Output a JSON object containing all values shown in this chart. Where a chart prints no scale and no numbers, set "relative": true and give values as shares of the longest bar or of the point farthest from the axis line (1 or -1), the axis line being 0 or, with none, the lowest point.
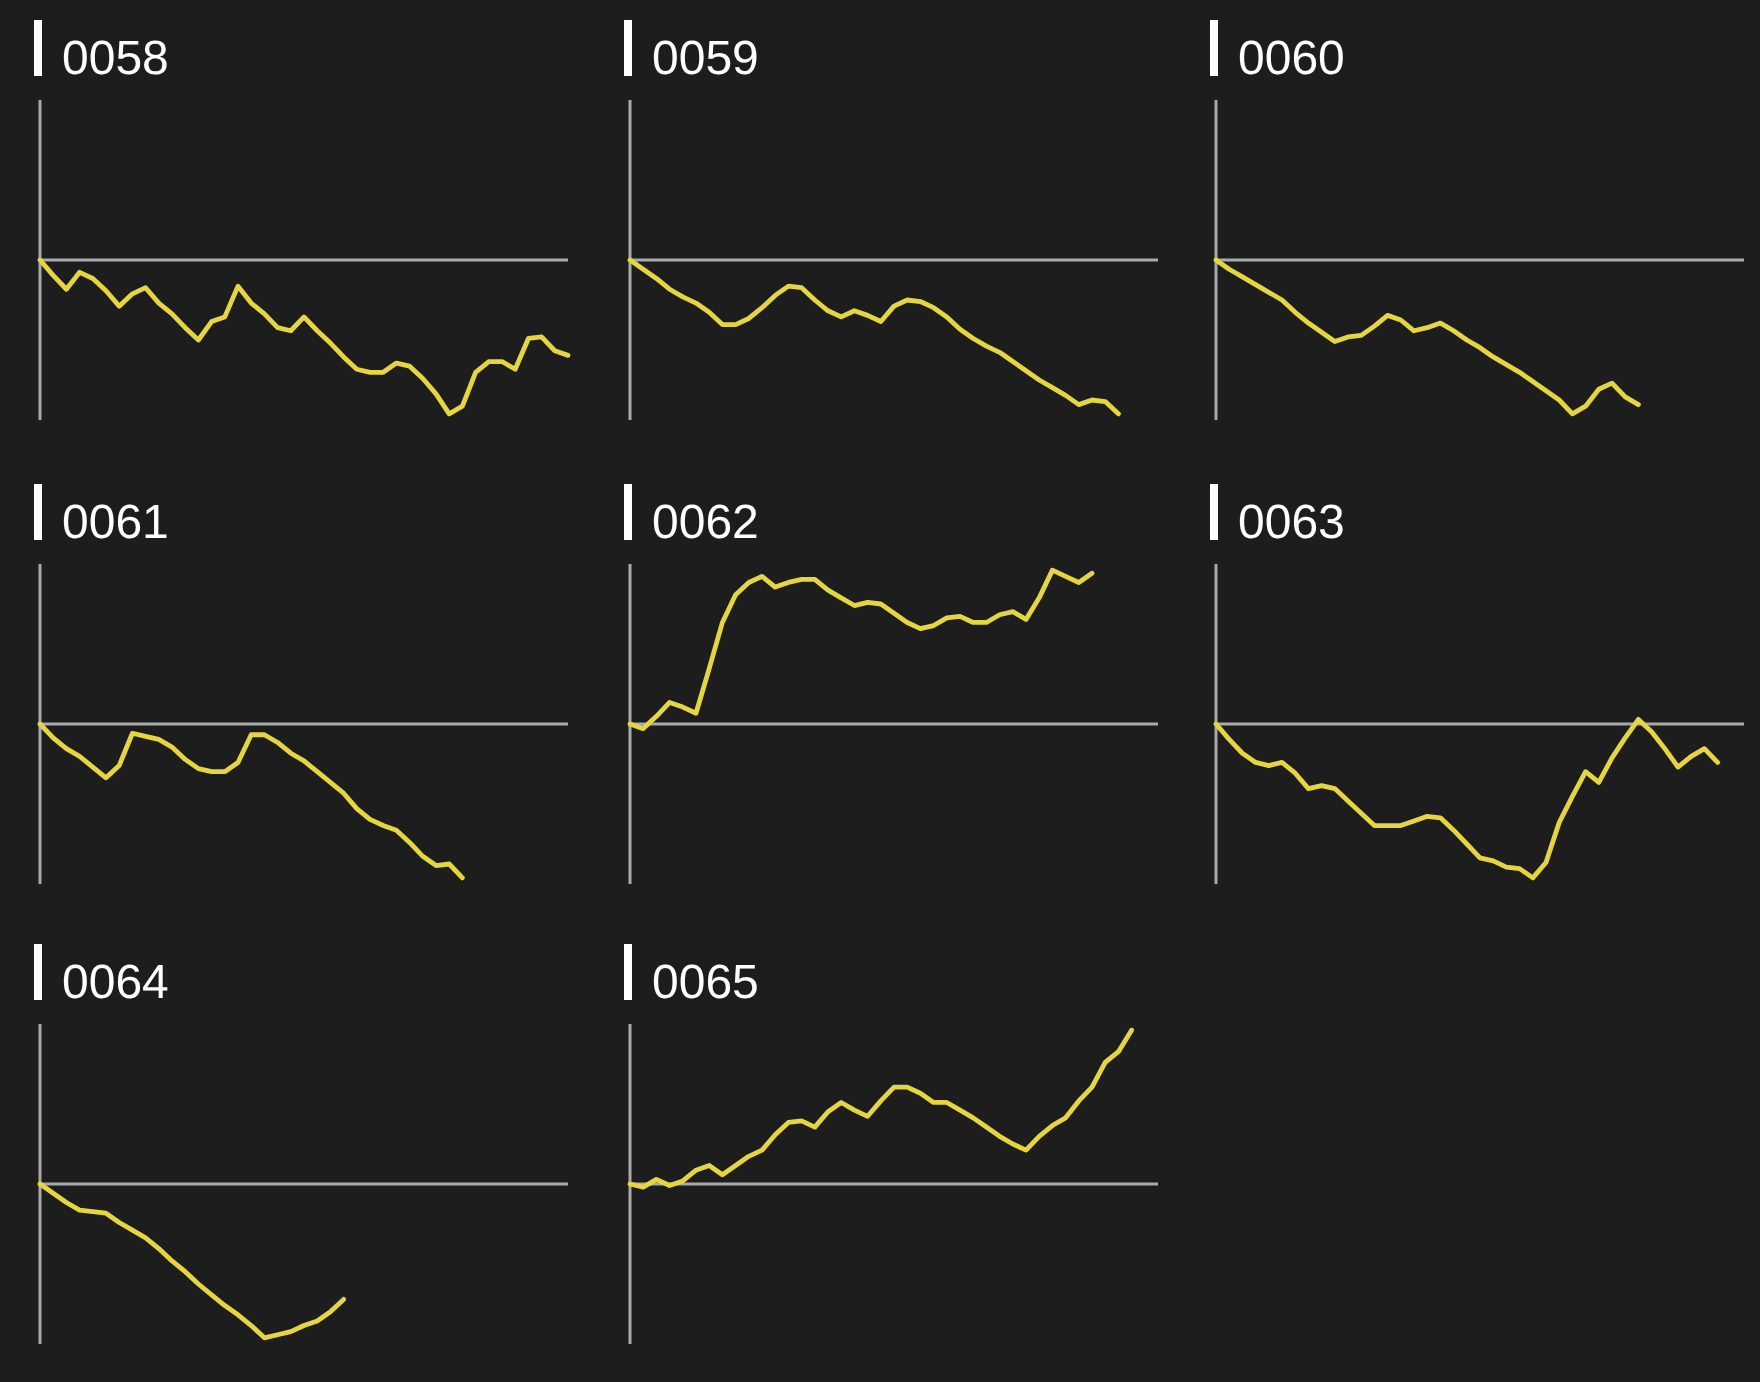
{
  "chart_data": [
    {
      "type": "line",
      "title": "0058",
      "relative": true,
      "color": "#e5d540",
      "categories": [
        null,
        null,
        null,
        null,
        null,
        null,
        null,
        null,
        null,
        null,
        null,
        null,
        null,
        null,
        null,
        null,
        null,
        null,
        null,
        null,
        null,
        null,
        null,
        null,
        null,
        null,
        null,
        null,
        null,
        null,
        null,
        null,
        null,
        null,
        null,
        null,
        null,
        null,
        null,
        null,
        null
      ],
      "values": [
        0,
        -0.1,
        -0.19,
        -0.08,
        -0.12,
        -0.2,
        -0.3,
        -0.22,
        -0.18,
        -0.28,
        -0.35,
        -0.44,
        -0.52,
        -0.4,
        -0.37,
        -0.17,
        -0.28,
        -0.35,
        -0.44,
        -0.46,
        -0.37,
        -0.46,
        -0.54,
        -0.63,
        -0.71,
        -0.73,
        -0.73,
        -0.67,
        -0.69,
        -0.77,
        -0.87,
        -1,
        -0.95,
        -0.73,
        -0.66,
        -0.66,
        -0.71,
        -0.51,
        -0.5,
        -0.59,
        -0.62
      ]
    },
    {
      "type": "line",
      "title": "0059",
      "relative": true,
      "color": "#e5d540",
      "categories": [
        null,
        null,
        null,
        null,
        null,
        null,
        null,
        null,
        null,
        null,
        null,
        null,
        null,
        null,
        null,
        null,
        null,
        null,
        null,
        null,
        null,
        null,
        null,
        null,
        null,
        null,
        null,
        null,
        null,
        null,
        null,
        null,
        null,
        null,
        null,
        null,
        null,
        null,
        null,
        null,
        null
      ],
      "values": [
        0,
        -0.06,
        -0.12,
        -0.19,
        -0.24,
        -0.28,
        -0.34,
        -0.42,
        -0.42,
        -0.38,
        -0.31,
        -0.23,
        -0.17,
        -0.18,
        -0.26,
        -0.33,
        -0.37,
        -0.33,
        -0.36,
        -0.4,
        -0.3,
        -0.26,
        -0.27,
        -0.31,
        -0.37,
        -0.45,
        -0.51,
        -0.56,
        -0.6,
        -0.66,
        -0.72,
        -0.78,
        -0.83,
        -0.88,
        -0.94,
        -0.91,
        -0.92,
        -1,
        null,
        null,
        null
      ]
    },
    {
      "type": "line",
      "title": "0060",
      "relative": true,
      "color": "#e5d540",
      "categories": [
        null,
        null,
        null,
        null,
        null,
        null,
        null,
        null,
        null,
        null,
        null,
        null,
        null,
        null,
        null,
        null,
        null,
        null,
        null,
        null,
        null,
        null,
        null,
        null,
        null,
        null,
        null,
        null,
        null,
        null,
        null,
        null,
        null,
        null,
        null,
        null,
        null,
        null,
        null,
        null,
        null
      ],
      "values": [
        0,
        -0.06,
        -0.11,
        -0.16,
        -0.21,
        -0.26,
        -0.34,
        -0.41,
        -0.47,
        -0.53,
        -0.5,
        -0.49,
        -0.43,
        -0.36,
        -0.39,
        -0.46,
        -0.44,
        -0.41,
        -0.46,
        -0.52,
        -0.57,
        -0.63,
        -0.68,
        -0.73,
        -0.79,
        -0.85,
        -0.91,
        -1,
        -0.95,
        -0.84,
        -0.8,
        -0.89,
        -0.94,
        null,
        null,
        null,
        null,
        null,
        null,
        null,
        null
      ]
    },
    {
      "type": "line",
      "title": "0061",
      "relative": true,
      "color": "#e5d540",
      "categories": [
        null,
        null,
        null,
        null,
        null,
        null,
        null,
        null,
        null,
        null,
        null,
        null,
        null,
        null,
        null,
        null,
        null,
        null,
        null,
        null,
        null,
        null,
        null,
        null,
        null,
        null,
        null,
        null,
        null,
        null,
        null,
        null,
        null,
        null,
        null,
        null,
        null,
        null,
        null,
        null,
        null
      ],
      "values": [
        0,
        -0.09,
        -0.16,
        -0.21,
        -0.28,
        -0.35,
        -0.27,
        -0.06,
        -0.08,
        -0.1,
        -0.15,
        -0.23,
        -0.29,
        -0.31,
        -0.31,
        -0.25,
        -0.07,
        -0.07,
        -0.12,
        -0.19,
        -0.24,
        -0.31,
        -0.38,
        -0.45,
        -0.55,
        -0.62,
        -0.66,
        -0.69,
        -0.77,
        -0.86,
        -0.92,
        -0.91,
        -1,
        null,
        null,
        null,
        null,
        null,
        null,
        null,
        null
      ]
    },
    {
      "type": "line",
      "title": "0062",
      "relative": true,
      "color": "#e5d540",
      "categories": [
        null,
        null,
        null,
        null,
        null,
        null,
        null,
        null,
        null,
        null,
        null,
        null,
        null,
        null,
        null,
        null,
        null,
        null,
        null,
        null,
        null,
        null,
        null,
        null,
        null,
        null,
        null,
        null,
        null,
        null,
        null,
        null,
        null,
        null,
        null,
        null,
        null,
        null,
        null,
        null,
        null
      ],
      "values": [
        0,
        -0.03,
        0.05,
        0.14,
        0.11,
        0.07,
        0.36,
        0.66,
        0.84,
        0.92,
        0.96,
        0.89,
        0.92,
        0.94,
        0.94,
        0.87,
        0.82,
        0.77,
        0.79,
        0.78,
        0.72,
        0.66,
        0.62,
        0.64,
        0.69,
        0.7,
        0.66,
        0.66,
        0.71,
        0.73,
        0.68,
        0.82,
        1,
        0.96,
        0.92,
        0.98,
        null,
        null,
        null,
        null,
        null
      ]
    },
    {
      "type": "line",
      "title": "0063",
      "relative": true,
      "color": "#e5d540",
      "categories": [
        null,
        null,
        null,
        null,
        null,
        null,
        null,
        null,
        null,
        null,
        null,
        null,
        null,
        null,
        null,
        null,
        null,
        null,
        null,
        null,
        null,
        null,
        null,
        null,
        null,
        null,
        null,
        null,
        null,
        null,
        null,
        null,
        null,
        null,
        null,
        null,
        null,
        null,
        null,
        null,
        null
      ],
      "values": [
        0,
        -0.1,
        -0.19,
        -0.25,
        -0.27,
        -0.25,
        -0.32,
        -0.42,
        -0.4,
        -0.42,
        -0.5,
        -0.58,
        -0.66,
        -0.66,
        -0.66,
        -0.63,
        -0.6,
        -0.61,
        -0.69,
        -0.78,
        -0.87,
        -0.89,
        -0.93,
        -0.94,
        -1,
        -0.9,
        -0.64,
        -0.47,
        -0.31,
        -0.38,
        -0.22,
        -0.09,
        0.03,
        -0.05,
        -0.16,
        -0.28,
        -0.21,
        -0.16,
        -0.25,
        null,
        null
      ]
    },
    {
      "type": "line",
      "title": "0064",
      "relative": true,
      "color": "#e5d540",
      "categories": [
        null,
        null,
        null,
        null,
        null,
        null,
        null,
        null,
        null,
        null,
        null,
        null,
        null,
        null,
        null,
        null,
        null,
        null,
        null,
        null,
        null,
        null,
        null,
        null,
        null,
        null,
        null,
        null,
        null,
        null,
        null,
        null,
        null,
        null,
        null,
        null,
        null,
        null,
        null,
        null,
        null
      ],
      "values": [
        0,
        -0.06,
        -0.12,
        -0.17,
        -0.18,
        -0.19,
        -0.25,
        -0.3,
        -0.35,
        -0.42,
        -0.5,
        -0.57,
        -0.65,
        -0.72,
        -0.79,
        -0.85,
        -0.92,
        -1,
        -0.98,
        -0.96,
        -0.92,
        -0.89,
        -0.83,
        -0.75,
        null,
        null,
        null,
        null,
        null,
        null,
        null,
        null,
        null,
        null,
        null,
        null,
        null,
        null,
        null,
        null,
        null
      ]
    },
    {
      "type": "line",
      "title": "0065",
      "relative": true,
      "color": "#e5d540",
      "categories": [
        null,
        null,
        null,
        null,
        null,
        null,
        null,
        null,
        null,
        null,
        null,
        null,
        null,
        null,
        null,
        null,
        null,
        null,
        null,
        null,
        null,
        null,
        null,
        null,
        null,
        null,
        null,
        null,
        null,
        null,
        null,
        null,
        null,
        null,
        null,
        null,
        null,
        null,
        null,
        null,
        null
      ],
      "values": [
        0,
        -0.02,
        0.03,
        -0.01,
        0.02,
        0.09,
        0.12,
        0.06,
        0.12,
        0.18,
        0.22,
        0.32,
        0.4,
        0.41,
        0.37,
        0.47,
        0.53,
        0.48,
        0.44,
        0.54,
        0.63,
        0.63,
        0.59,
        0.53,
        0.53,
        0.48,
        0.43,
        0.37,
        0.31,
        0.26,
        0.22,
        0.31,
        0.38,
        0.43,
        0.54,
        0.63,
        0.79,
        0.86,
        1,
        null,
        null
      ]
    }
  ]
}
